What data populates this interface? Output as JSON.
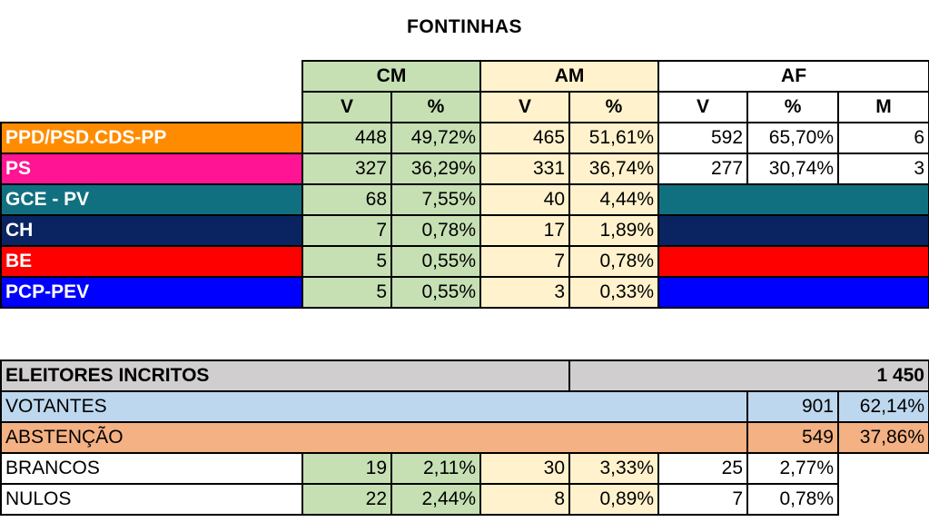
{
  "title": "FONTINHAS",
  "groups": {
    "cm": "CM",
    "am": "AM",
    "af": "AF"
  },
  "subheaders": {
    "v": "V",
    "pct": "%",
    "m": "M"
  },
  "parties": [
    {
      "name": "PPD/PSD.CDS-PP",
      "color": "#ff8c00",
      "cm_v": "448",
      "cm_pct": "49,72%",
      "am_v": "465",
      "am_pct": "51,61%",
      "af_v": "592",
      "af_pct": "65,70%",
      "af_m": "6"
    },
    {
      "name": "PS",
      "color": "#ff1493",
      "cm_v": "327",
      "cm_pct": "36,29%",
      "am_v": "331",
      "am_pct": "36,74%",
      "af_v": "277",
      "af_pct": "30,74%",
      "af_m": "3"
    },
    {
      "name": "GCE - PV",
      "color": "#117080",
      "cm_v": "68",
      "cm_pct": "7,55%",
      "am_v": "40",
      "am_pct": "4,44%"
    },
    {
      "name": "CH",
      "color": "#0a2461",
      "cm_v": "7",
      "cm_pct": "0,78%",
      "am_v": "17",
      "am_pct": "1,89%"
    },
    {
      "name": "BE",
      "color": "#ff0000",
      "cm_v": "5",
      "cm_pct": "0,55%",
      "am_v": "7",
      "am_pct": "0,78%"
    },
    {
      "name": "PCP-PEV",
      "color": "#0000ff",
      "cm_v": "5",
      "cm_pct": "0,55%",
      "am_v": "3",
      "am_pct": "0,33%"
    }
  ],
  "summary": {
    "eleitores": {
      "label": "ELEITORES INCRITOS",
      "value": "1 450"
    },
    "votantes": {
      "label": "VOTANTES",
      "v": "901",
      "pct": "62,14%"
    },
    "abstencao": {
      "label": "ABSTENÇÃO",
      "v": "549",
      "pct": "37,86%"
    },
    "brancos": {
      "label": "BRANCOS",
      "cm_v": "19",
      "cm_pct": "2,11%",
      "am_v": "30",
      "am_pct": "3,33%",
      "af_v": "25",
      "af_pct": "2,77%"
    },
    "nulos": {
      "label": "NULOS",
      "cm_v": "22",
      "cm_pct": "2,44%",
      "am_v": "8",
      "am_pct": "0,89%",
      "af_v": "7",
      "af_pct": "0,78%"
    }
  }
}
